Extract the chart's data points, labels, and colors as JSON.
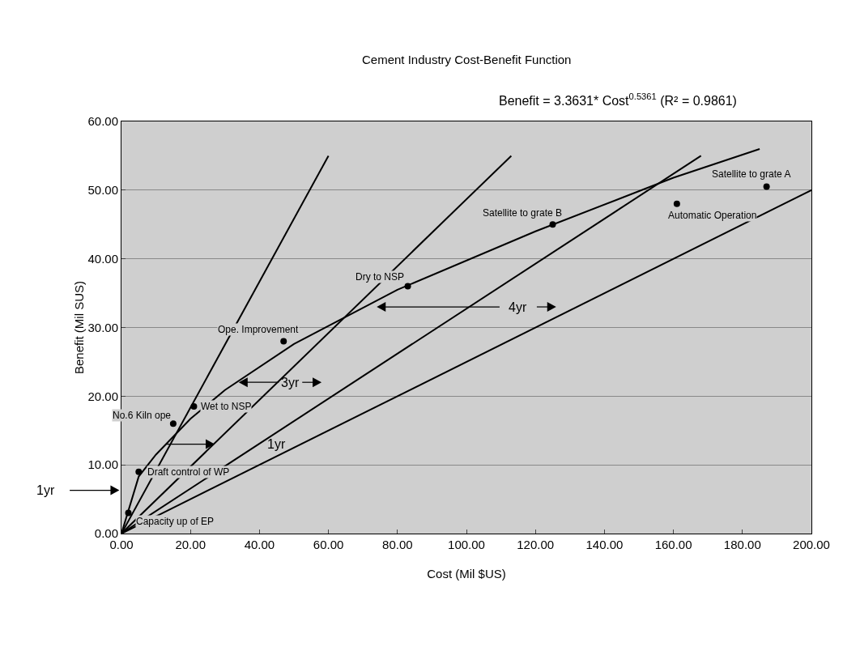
{
  "chart_data": {
    "type": "scatter",
    "title": "Cement Industry Cost-Benefit Function",
    "subtitle": "Benefit = 3.3631* Cost$^{0.5361}$ (R² = 0.9861)",
    "xlabel": "Cost (Mil $US)",
    "ylabel": "Benefit (Mil SUS)",
    "xlim": [
      0,
      200
    ],
    "ylim": [
      0,
      60
    ],
    "xticks": [
      {
        "value": 0,
        "label": "0.00"
      },
      {
        "value": 20,
        "label": "20.00"
      },
      {
        "value": 40,
        "label": "40.00"
      },
      {
        "value": 60,
        "label": "60.00"
      },
      {
        "value": 80,
        "label": "80.00"
      },
      {
        "value": 100,
        "label": "100.00"
      },
      {
        "value": 120,
        "label": "120.00"
      },
      {
        "value": 140,
        "label": "140.00"
      },
      {
        "value": 160,
        "label": "160.00"
      },
      {
        "value": 180,
        "label": "180.00"
      },
      {
        "value": 200,
        "label": "200.00"
      }
    ],
    "yticks": [
      {
        "value": 0,
        "label": "0.00"
      },
      {
        "value": 10,
        "label": "10.00"
      },
      {
        "value": 20,
        "label": "20.00"
      },
      {
        "value": 30,
        "label": "30.00"
      },
      {
        "value": 40,
        "label": "40.00"
      },
      {
        "value": 50,
        "label": "50.00"
      },
      {
        "value": 60,
        "label": "60.00"
      }
    ],
    "grid": "y",
    "series": [
      {
        "marker": "circle",
        "color": "#000000",
        "x": [
          2,
          5,
          15,
          21,
          47,
          83,
          125,
          161,
          187
        ],
        "values": [
          3,
          9,
          16,
          18.5,
          28,
          36,
          45,
          48,
          50.5
        ]
      },
      {
        "type": "line",
        "marker": "none",
        "line_style": "solid",
        "color": "#000000",
        "x": [
          0,
          5,
          10,
          20,
          30,
          50,
          80,
          120,
          160,
          185
        ],
        "values": [
          0,
          8.3,
          11.5,
          16.7,
          20.9,
          27.6,
          35.5,
          44,
          51.8,
          56
        ]
      },
      {
        "type": "line",
        "marker": "none",
        "line_style": "solid",
        "color": "#000000",
        "x": [
          0,
          60
        ],
        "values": [
          0,
          55
        ]
      },
      {
        "type": "line",
        "marker": "none",
        "line_style": "solid",
        "color": "#000000",
        "x": [
          0,
          113
        ],
        "values": [
          0,
          55
        ]
      },
      {
        "type": "line",
        "marker": "none",
        "line_style": "solid",
        "color": "#000000",
        "x": [
          0,
          168
        ],
        "values": [
          0,
          55
        ]
      },
      {
        "type": "line",
        "marker": "none",
        "line_style": "solid",
        "color": "#000000",
        "x": [
          0,
          200
        ],
        "values": [
          0,
          50
        ]
      }
    ],
    "annotations": [
      {
        "text": "Capacity up of EP",
        "x": 2,
        "y": 3
      },
      {
        "text": "Draft control of WP",
        "x": 5,
        "y": 9
      },
      {
        "text": "No.6 Kiln ope",
        "x": 15,
        "y": 16
      },
      {
        "text": "Wet to NSP",
        "x": 21,
        "y": 18.5
      },
      {
        "text": "Ope. Improvement",
        "x": 47,
        "y": 28
      },
      {
        "text": "Dry to NSP",
        "x": 83,
        "y": 36
      },
      {
        "text": "Satellite to grate B",
        "x": 125,
        "y": 45
      },
      {
        "text": "Automatic Operation",
        "x": 161,
        "y": 48
      },
      {
        "text": "Satellite to grate A",
        "x": 187,
        "y": 50.5
      },
      "1yr",
      "1yr",
      "3yr",
      "4yr"
    ]
  }
}
